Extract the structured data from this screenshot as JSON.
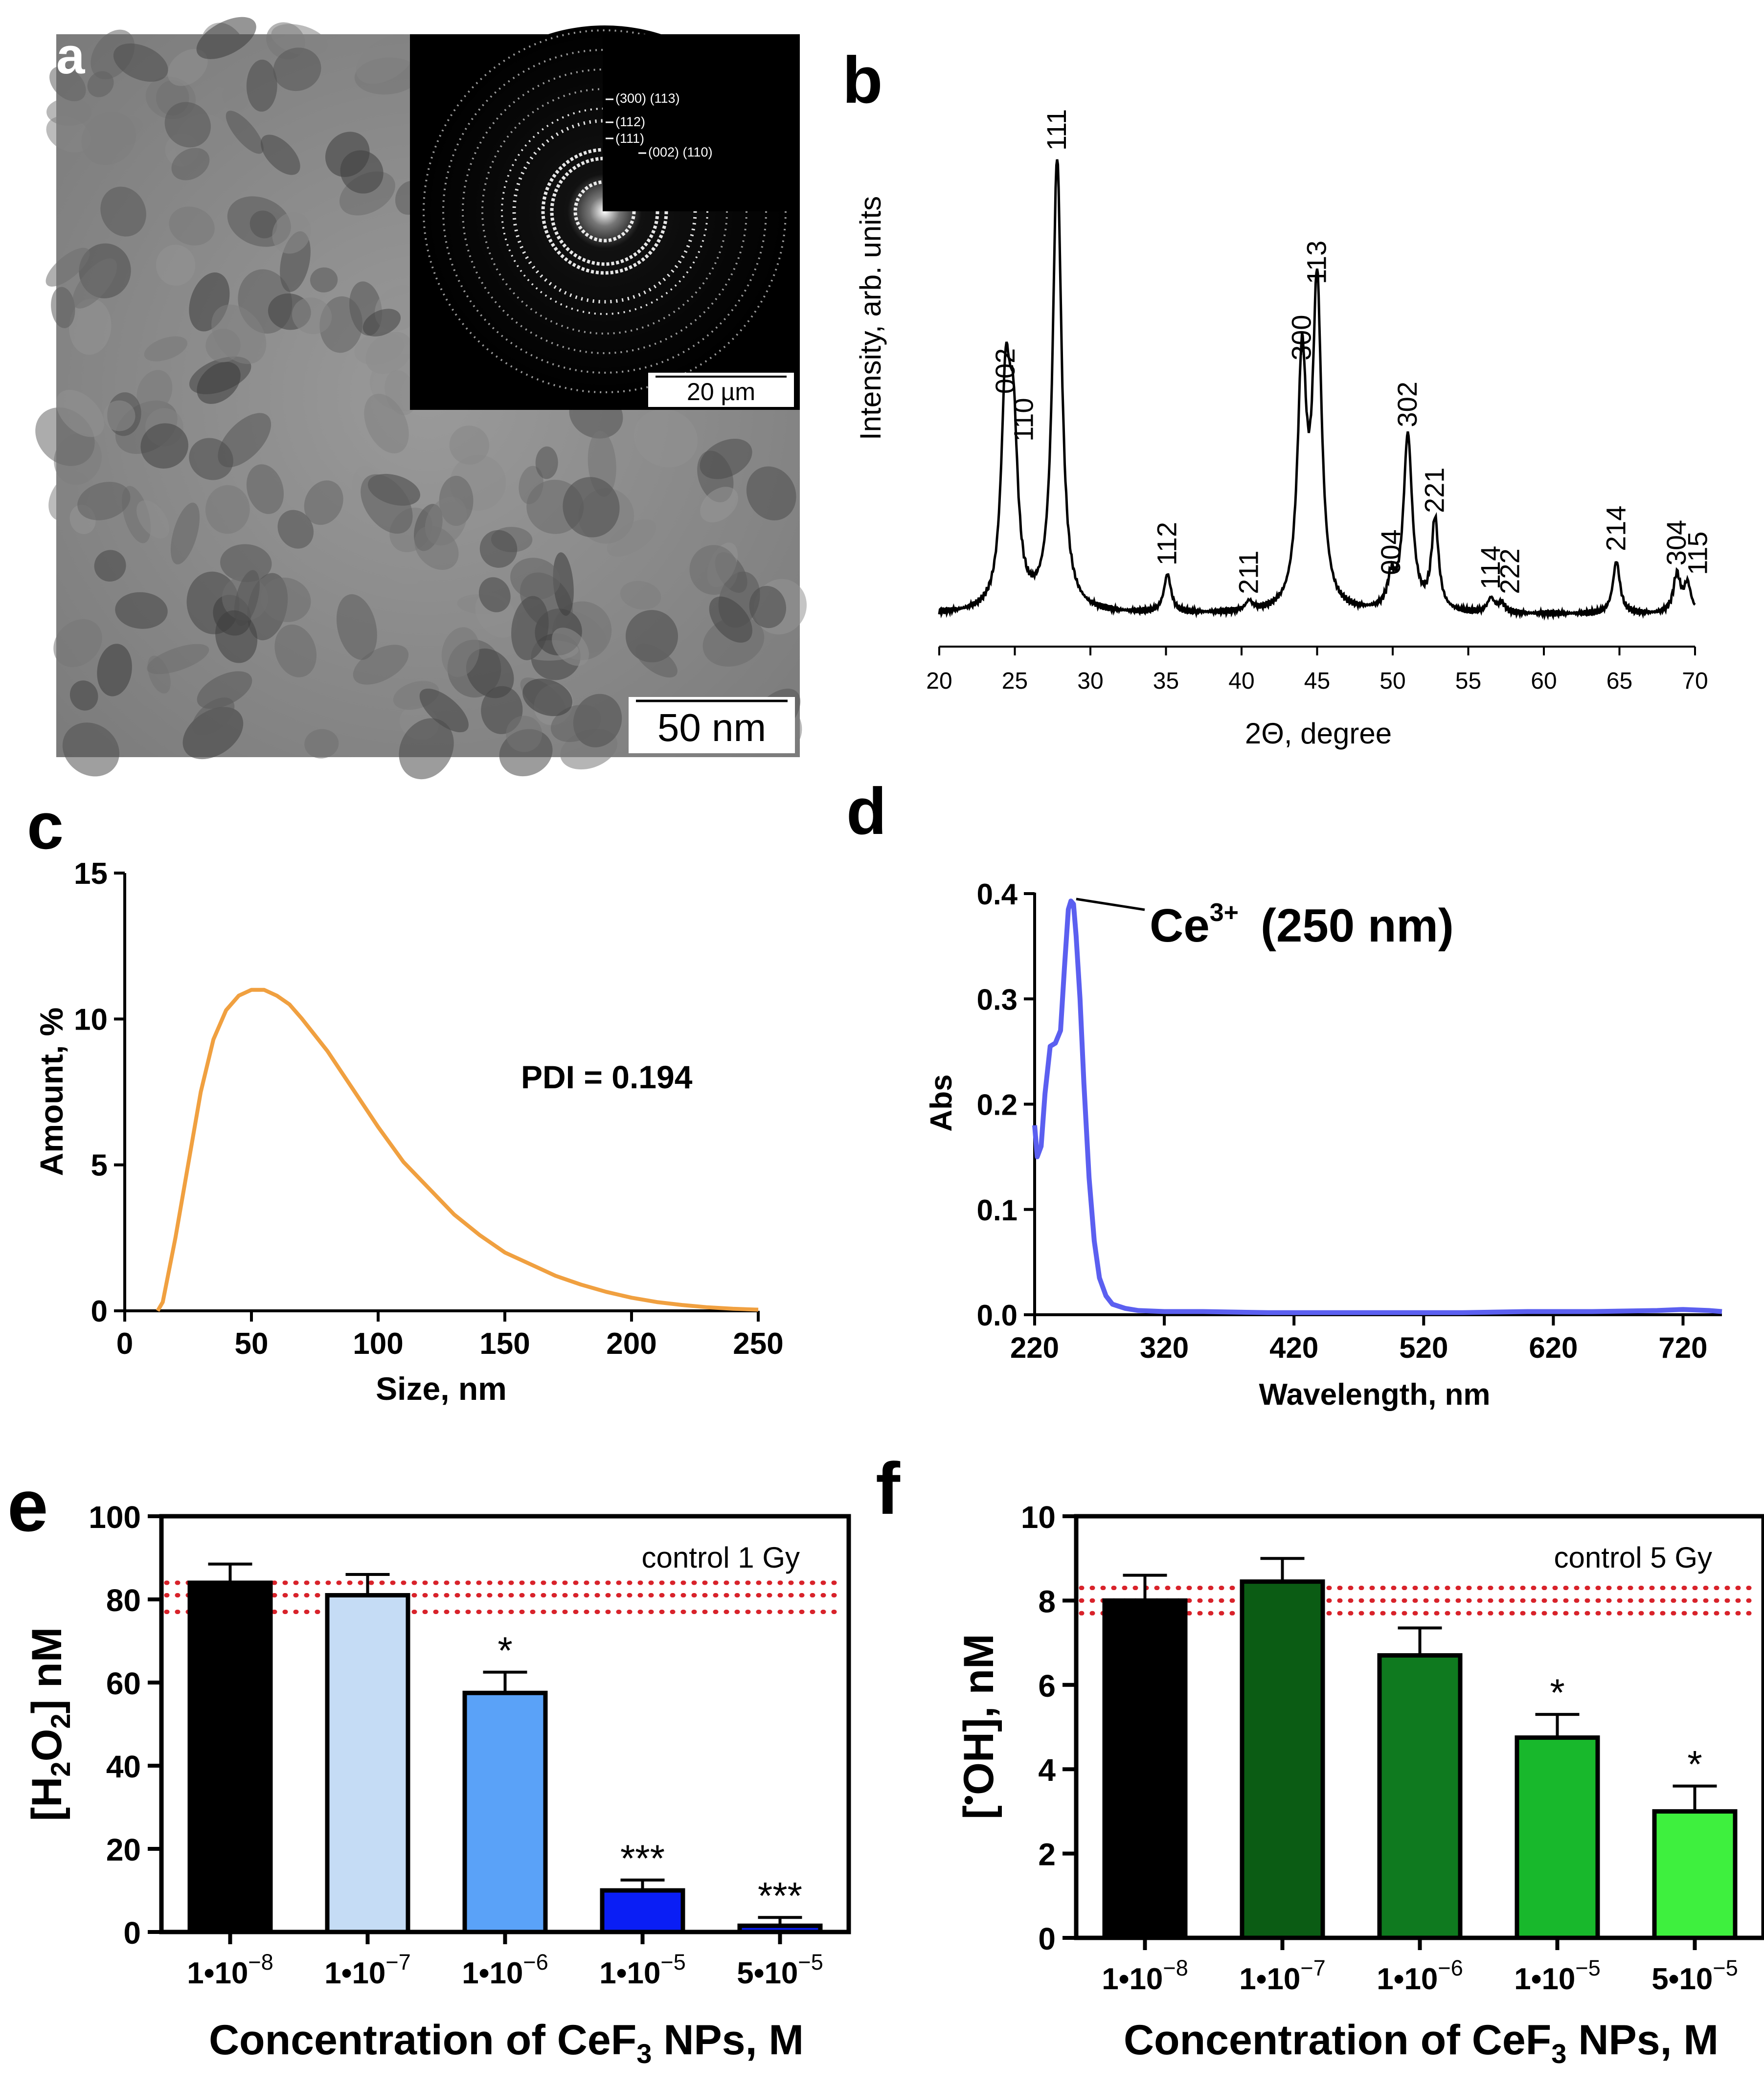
{
  "panels": {
    "a": {
      "letter": "a",
      "scalebar_main": "50 nm",
      "scalebar_inset": "20 µm",
      "saed_labels": [
        "(300) (113)",
        "(112)",
        "(111)",
        "(002) (110)"
      ],
      "colors": {
        "background": "#8f8f8f",
        "inset": "#000000"
      }
    },
    "b": {
      "letter": "b"
    },
    "c": {
      "letter": "c"
    },
    "d": {
      "letter": "d"
    },
    "e": {
      "letter": "e"
    },
    "f": {
      "letter": "f"
    }
  },
  "chart_data": [
    {
      "panel": "b",
      "type": "line",
      "xlabel": "2Θ, degree",
      "ylabel": "Intensity, arb. units",
      "xlim": [
        20,
        70
      ],
      "xticks": [
        20,
        25,
        30,
        35,
        40,
        45,
        50,
        55,
        60,
        65,
        70
      ],
      "y_axis_visible": false,
      "baseline": 0.05,
      "peaks": [
        {
          "label": "002",
          "x": 24.4,
          "y": 0.49
        },
        {
          "label": "110",
          "x": 24.9,
          "y": 0.39
        },
        {
          "label": "111",
          "x": 27.8,
          "y": 1.0
        },
        {
          "label": "112",
          "x": 35.1,
          "y": 0.13
        },
        {
          "label": "211",
          "x": 40.5,
          "y": 0.07
        },
        {
          "label": "300",
          "x": 44.0,
          "y": 0.56
        },
        {
          "label": "113",
          "x": 45.0,
          "y": 0.72
        },
        {
          "label": "004",
          "x": 49.9,
          "y": 0.11
        },
        {
          "label": "302",
          "x": 51.0,
          "y": 0.42
        },
        {
          "label": "221",
          "x": 52.8,
          "y": 0.24
        },
        {
          "label": "114",
          "x": 56.5,
          "y": 0.08
        },
        {
          "label": "222",
          "x": 57.2,
          "y": 0.07
        },
        {
          "label": "214",
          "x": 64.8,
          "y": 0.16
        },
        {
          "label": "304",
          "x": 68.8,
          "y": 0.13
        },
        {
          "label": "115",
          "x": 69.5,
          "y": 0.11
        }
      ],
      "line_color": "#000000"
    },
    {
      "panel": "c",
      "type": "line",
      "xlabel": "Size, nm",
      "ylabel": "Amount, %",
      "xlim": [
        0,
        250
      ],
      "ylim": [
        0,
        15
      ],
      "xticks": [
        0,
        50,
        100,
        150,
        200,
        250
      ],
      "yticks": [
        0,
        5,
        10,
        15
      ],
      "annotation": "PDI = 0.194",
      "x": [
        13,
        15,
        20,
        25,
        30,
        35,
        40,
        45,
        50,
        55,
        60,
        65,
        70,
        80,
        90,
        100,
        110,
        120,
        130,
        140,
        150,
        160,
        170,
        180,
        190,
        200,
        210,
        220,
        230,
        240,
        250
      ],
      "y": [
        0.0,
        0.3,
        2.5,
        5.0,
        7.5,
        9.3,
        10.3,
        10.8,
        11.0,
        11.0,
        10.8,
        10.5,
        10.0,
        8.9,
        7.6,
        6.3,
        5.1,
        4.2,
        3.3,
        2.6,
        2.0,
        1.6,
        1.2,
        0.9,
        0.65,
        0.45,
        0.3,
        0.2,
        0.12,
        0.07,
        0.04
      ],
      "line_color": "#f0a040"
    },
    {
      "panel": "d",
      "type": "line",
      "xlabel": "Wavelength, nm",
      "ylabel": "Abs",
      "xlim": [
        220,
        750
      ],
      "ylim": [
        0.0,
        0.4
      ],
      "xticks": [
        220,
        320,
        420,
        520,
        620,
        720
      ],
      "yticks": [
        "0.0",
        "0.1",
        "0.2",
        "0.3",
        "0.4"
      ],
      "annotation": {
        "ion": "Ce",
        "charge": "3+",
        "text": "(250 nm)",
        "x": 250,
        "y": 0.393
      },
      "x": [
        220,
        222,
        225,
        228,
        232,
        236,
        240,
        243,
        246,
        248,
        250,
        252,
        255,
        258,
        262,
        266,
        270,
        275,
        280,
        290,
        300,
        320,
        350,
        400,
        450,
        500,
        550,
        600,
        650,
        700,
        720,
        740,
        750
      ],
      "y": [
        0.18,
        0.15,
        0.16,
        0.21,
        0.255,
        0.258,
        0.27,
        0.33,
        0.385,
        0.393,
        0.39,
        0.36,
        0.3,
        0.22,
        0.13,
        0.07,
        0.035,
        0.018,
        0.01,
        0.006,
        0.004,
        0.003,
        0.003,
        0.002,
        0.002,
        0.002,
        0.002,
        0.003,
        0.003,
        0.004,
        0.005,
        0.004,
        0.003
      ],
      "line_color": "#5b5ff0"
    },
    {
      "panel": "e",
      "type": "bar",
      "xlabel": {
        "pre": "Concentration of CeF",
        "sub": "3",
        "post": " NPs, M"
      },
      "ylabel": {
        "pre": "[H",
        "sub1": "2",
        "mid": "O",
        "sub2": "2",
        "post": "] nM"
      },
      "ylim": [
        0,
        100
      ],
      "yticks": [
        0,
        20,
        40,
        60,
        80,
        100
      ],
      "control_label": "control 1 Gy",
      "control_band": [
        77,
        81,
        84
      ],
      "categories": [
        {
          "mant": "1•10",
          "exp": "−8"
        },
        {
          "mant": "1•10",
          "exp": "−7"
        },
        {
          "mant": "1•10",
          "exp": "−6"
        },
        {
          "mant": "1•10",
          "exp": "−5"
        },
        {
          "mant": "5•10",
          "exp": "−5"
        }
      ],
      "values": [
        84,
        81,
        57.5,
        10,
        1.5
      ],
      "errors": [
        4.5,
        5,
        5,
        2.5,
        2
      ],
      "significance": [
        "",
        "",
        "*",
        "***",
        "***"
      ],
      "bar_colors": [
        "#000000",
        "#c5dcf5",
        "#5aa2f8",
        "#0a1ef5",
        "#0a1ef5"
      ],
      "band_color": "#d8222a"
    },
    {
      "panel": "f",
      "type": "bar",
      "xlabel": {
        "pre": "Concentration of CeF",
        "sub": "3",
        "post": " NPs, M"
      },
      "ylabel": {
        "pre": "[",
        "dot": "•",
        "post": "OH], nM"
      },
      "ylim": [
        0,
        10
      ],
      "yticks": [
        0,
        2,
        4,
        6,
        8,
        10
      ],
      "control_label": "control 5 Gy",
      "control_band": [
        7.7,
        8.0,
        8.3
      ],
      "categories": [
        {
          "mant": "1•10",
          "exp": "−8"
        },
        {
          "mant": "1•10",
          "exp": "−7"
        },
        {
          "mant": "1•10",
          "exp": "−6"
        },
        {
          "mant": "1•10",
          "exp": "−5"
        },
        {
          "mant": "5•10",
          "exp": "−5"
        }
      ],
      "values": [
        8.0,
        8.45,
        6.7,
        4.75,
        3.0
      ],
      "errors": [
        0.6,
        0.55,
        0.65,
        0.55,
        0.6
      ],
      "significance": [
        "",
        "",
        "",
        "*",
        "*"
      ],
      "bar_colors": [
        "#000000",
        "#0b5c14",
        "#0f7a1f",
        "#18b82c",
        "#3ef03e"
      ],
      "band_color": "#d8222a"
    }
  ]
}
